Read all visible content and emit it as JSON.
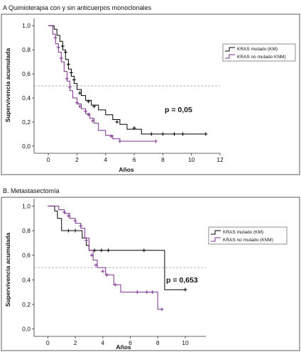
{
  "chart_data": [
    {
      "type": "line",
      "title": "A  Quimioterapia con y sin anticuerpos monoclonales",
      "xlabel": "Años",
      "ylabel": "Supervivencia acumulada",
      "xlim": [
        -1,
        12
      ],
      "ylim": [
        -0.06,
        1.06
      ],
      "xticks": [
        "0",
        "2",
        "4",
        "6",
        "8",
        "10",
        "12"
      ],
      "yticks": [
        "0,0",
        "0,2",
        "0,4",
        "0,6",
        "0,8",
        "1,0"
      ],
      "reference_line": 0.5,
      "annotation": "p = 0,05",
      "legend_position": "right",
      "series": [
        {
          "name": "KRAS mutado (KM)",
          "color": "#000000",
          "steps": [
            [
              0,
              1.0
            ],
            [
              0.4,
              0.97
            ],
            [
              0.6,
              0.92
            ],
            [
              0.8,
              0.87
            ],
            [
              1.0,
              0.8
            ],
            [
              1.2,
              0.72
            ],
            [
              1.4,
              0.64
            ],
            [
              1.6,
              0.58
            ],
            [
              1.8,
              0.52
            ],
            [
              2.0,
              0.47
            ],
            [
              2.3,
              0.42
            ],
            [
              2.6,
              0.38
            ],
            [
              3.0,
              0.34
            ],
            [
              3.5,
              0.3
            ],
            [
              4.0,
              0.26
            ],
            [
              4.5,
              0.22
            ],
            [
              5.0,
              0.18
            ],
            [
              5.5,
              0.14
            ],
            [
              6.5,
              0.1
            ],
            [
              11.0,
              0.1
            ]
          ],
          "censors": [
            [
              1.0,
              0.83
            ],
            [
              1.2,
              0.78
            ],
            [
              1.4,
              0.68
            ],
            [
              1.6,
              0.61
            ],
            [
              1.8,
              0.55
            ],
            [
              2.2,
              0.44
            ],
            [
              2.8,
              0.37
            ],
            [
              3.2,
              0.33
            ],
            [
              4.8,
              0.2
            ],
            [
              6.0,
              0.15
            ],
            [
              7.2,
              0.1
            ],
            [
              8.0,
              0.1
            ],
            [
              8.8,
              0.1
            ],
            [
              9.4,
              0.1
            ],
            [
              11.0,
              0.1
            ]
          ]
        },
        {
          "name": "KRAS no mutado KNM)",
          "color": "#7a2e8c",
          "steps": [
            [
              0,
              1.0
            ],
            [
              0.3,
              0.93
            ],
            [
              0.5,
              0.85
            ],
            [
              0.7,
              0.78
            ],
            [
              0.9,
              0.7
            ],
            [
              1.1,
              0.62
            ],
            [
              1.3,
              0.54
            ],
            [
              1.5,
              0.46
            ],
            [
              1.7,
              0.4
            ],
            [
              2.0,
              0.35
            ],
            [
              2.3,
              0.31
            ],
            [
              2.6,
              0.27
            ],
            [
              2.9,
              0.23
            ],
            [
              3.2,
              0.19
            ],
            [
              3.5,
              0.13
            ],
            [
              4.0,
              0.09
            ],
            [
              4.5,
              0.06
            ],
            [
              5.0,
              0.04
            ],
            [
              7.5,
              0.04
            ]
          ],
          "censors": [
            [
              0.5,
              0.9
            ],
            [
              0.7,
              0.82
            ],
            [
              0.9,
              0.73
            ],
            [
              1.3,
              0.56
            ],
            [
              1.5,
              0.49
            ],
            [
              2.0,
              0.36
            ],
            [
              2.2,
              0.33
            ],
            [
              2.6,
              0.29
            ],
            [
              2.8,
              0.26
            ],
            [
              3.1,
              0.21
            ],
            [
              4.4,
              0.08
            ],
            [
              5.0,
              0.04
            ],
            [
              7.5,
              0.04
            ]
          ]
        }
      ]
    },
    {
      "type": "line",
      "title": "B.  Metastasectomía",
      "xlabel": "Años",
      "ylabel": "Supervivencia acumulada",
      "xlim": [
        -1,
        11.5
      ],
      "ylim": [
        -0.06,
        1.06
      ],
      "xticks": [
        "0",
        "2",
        "4",
        "6",
        "8",
        "10"
      ],
      "yticks": [
        "0,0",
        "0,2",
        "0,4",
        "0,6",
        "0,8",
        "1,0"
      ],
      "reference_line": 0.5,
      "annotation": "p = 0,653",
      "legend_position": "right",
      "series": [
        {
          "name": "KRAS mutado (KM)",
          "color": "#000000",
          "steps": [
            [
              0,
              1.0
            ],
            [
              0.5,
              0.96
            ],
            [
              0.7,
              0.9
            ],
            [
              1.0,
              0.8
            ],
            [
              2.2,
              0.8
            ],
            [
              2.5,
              0.74
            ],
            [
              2.8,
              0.68
            ],
            [
              3.0,
              0.64
            ],
            [
              8.5,
              0.64
            ],
            [
              8.5,
              0.32
            ],
            [
              10.0,
              0.32
            ]
          ],
          "censors": [
            [
              1.5,
              0.8
            ],
            [
              2.0,
              0.8
            ],
            [
              3.4,
              0.64
            ],
            [
              3.9,
              0.64
            ],
            [
              4.4,
              0.64
            ],
            [
              7.0,
              0.64
            ],
            [
              10.0,
              0.32
            ]
          ]
        },
        {
          "name": "KRAS no mutado (KNM)",
          "color": "#7a2e8c",
          "steps": [
            [
              0,
              1.0
            ],
            [
              0.8,
              0.97
            ],
            [
              1.2,
              0.94
            ],
            [
              1.6,
              0.9
            ],
            [
              2.0,
              0.86
            ],
            [
              2.4,
              0.82
            ],
            [
              2.7,
              0.74
            ],
            [
              3.0,
              0.64
            ],
            [
              3.3,
              0.56
            ],
            [
              3.6,
              0.5
            ],
            [
              4.2,
              0.44
            ],
            [
              4.8,
              0.36
            ],
            [
              5.3,
              0.3
            ],
            [
              8.0,
              0.3
            ],
            [
              8.0,
              0.16
            ],
            [
              8.3,
              0.16
            ]
          ],
          "censors": [
            [
              1.2,
              0.95
            ],
            [
              1.5,
              0.92
            ],
            [
              2.0,
              0.88
            ],
            [
              2.4,
              0.84
            ],
            [
              2.8,
              0.72
            ],
            [
              3.2,
              0.6
            ],
            [
              3.5,
              0.52
            ],
            [
              4.0,
              0.47
            ],
            [
              4.3,
              0.44
            ],
            [
              4.9,
              0.36
            ],
            [
              6.5,
              0.3
            ],
            [
              7.2,
              0.3
            ],
            [
              7.6,
              0.3
            ],
            [
              8.3,
              0.16
            ]
          ]
        }
      ]
    }
  ]
}
